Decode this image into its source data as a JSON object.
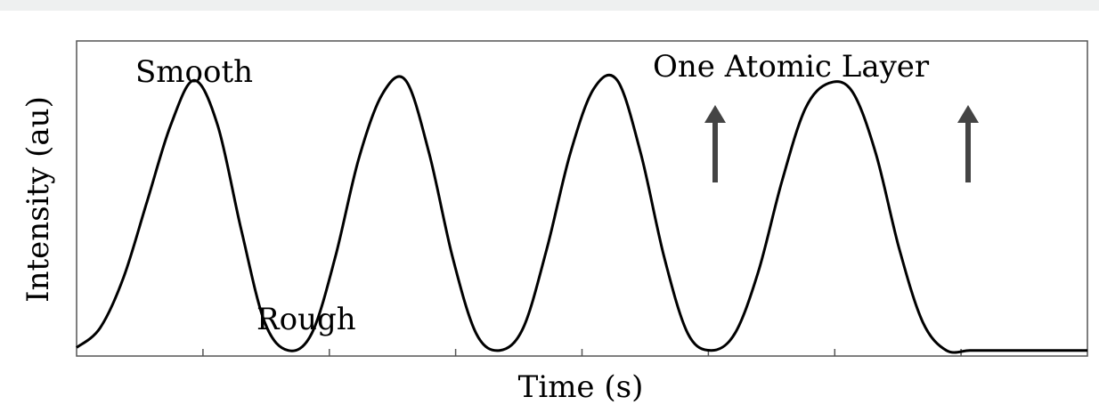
{
  "chart_data": {
    "type": "line",
    "title": "",
    "xlabel": "Time (s)",
    "ylabel": "Intensity (au)",
    "grid": false,
    "legend": "none",
    "xlim": [
      0,
      4.3
    ],
    "ylim": [
      0,
      1.12
    ],
    "series": [
      {
        "values_note_free": true,
        "x": [
          0.0,
          0.1,
          0.2,
          0.3,
          0.4,
          0.5,
          0.6,
          0.7,
          0.8,
          0.9,
          1.0,
          1.1,
          1.2,
          1.3,
          1.4,
          1.5,
          1.6,
          1.7,
          1.8,
          1.9,
          2.0,
          2.1,
          2.2,
          2.3,
          2.4,
          2.5,
          2.6,
          2.7,
          2.8,
          2.9,
          3.0,
          3.1,
          3.2,
          3.3,
          3.4,
          3.5,
          3.6,
          3.7,
          3.8,
          3.9,
          4.0,
          4.1,
          4.2,
          4.3
        ],
        "y": [
          0.03,
          0.1,
          0.28,
          0.55,
          0.82,
          0.98,
          0.82,
          0.45,
          0.12,
          0.02,
          0.08,
          0.35,
          0.7,
          0.93,
          0.98,
          0.72,
          0.35,
          0.08,
          0.02,
          0.1,
          0.38,
          0.72,
          0.95,
          0.98,
          0.72,
          0.35,
          0.08,
          0.02,
          0.08,
          0.3,
          0.62,
          0.88,
          0.97,
          0.94,
          0.72,
          0.38,
          0.12,
          0.02,
          0.02,
          0.02,
          0.02,
          0.02,
          0.02,
          0.02
        ]
      }
    ],
    "annotations": {
      "smooth": "Smooth",
      "rough": "Rough",
      "layer": "One Atomic Layer"
    },
    "colors": {
      "line": "#000000",
      "arrow": "#444444",
      "axis": "#555555"
    }
  }
}
